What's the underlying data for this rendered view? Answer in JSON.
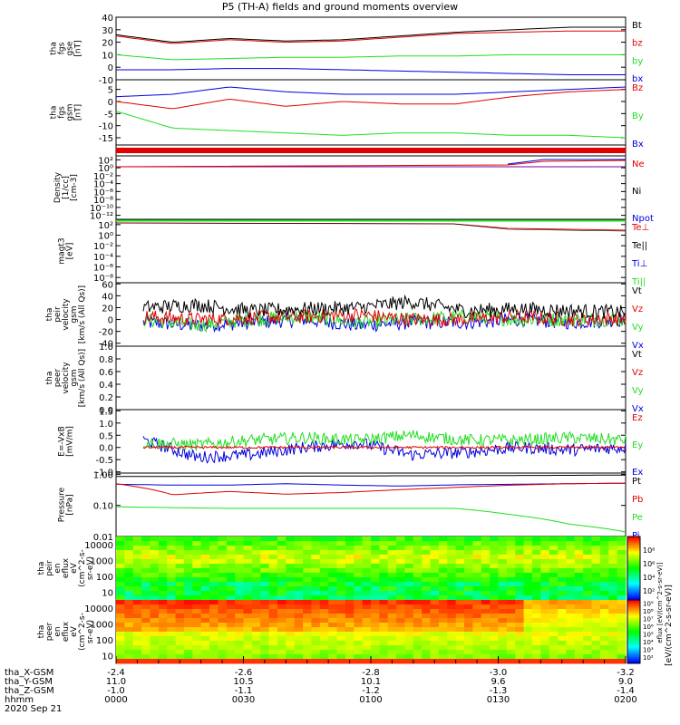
{
  "title": "P5 (TH-A) fields and ground moments overview",
  "colors": {
    "black": "#000000",
    "red": "#e00000",
    "green": "#22dd22",
    "blue": "#0000dd",
    "purple": "#7a00a0",
    "grey": "#999999"
  },
  "chart_data": [
    {
      "type": "line",
      "name": "fgs_gse",
      "ylabel_lines": [
        "tha",
        "fgs",
        "gse",
        "[nT]"
      ],
      "yticks": [
        "-10",
        "0",
        "10",
        "20",
        "30",
        "40"
      ],
      "ylim": [
        -10,
        40
      ],
      "series": [
        {
          "name": "Bt",
          "color": "#000000",
          "values": [
            26,
            20,
            23,
            21,
            22,
            25,
            28,
            30,
            32,
            32
          ]
        },
        {
          "name": "bz",
          "color": "#e00000",
          "values": [
            25,
            19,
            22,
            20,
            21,
            24,
            27,
            28,
            29,
            29
          ]
        },
        {
          "name": "by",
          "color": "#22dd22",
          "values": [
            10,
            6,
            7,
            8,
            8,
            9,
            9,
            10,
            10,
            10
          ]
        },
        {
          "name": "bx",
          "color": "#0000dd",
          "values": [
            -2,
            -2,
            -1,
            -1,
            -2,
            -3,
            -4,
            -5,
            -6,
            -6
          ]
        }
      ]
    },
    {
      "type": "line",
      "name": "fgs_gsm",
      "ylabel_lines": [
        "tha",
        "fgs",
        "gsm",
        "[nT]"
      ],
      "yticks": [
        "-15",
        "-10",
        "-5",
        "0",
        "5"
      ],
      "ylim": [
        -18,
        9
      ],
      "series": [
        {
          "name": "Bz",
          "color": "#e00000",
          "values": [
            0,
            -3,
            1,
            -2,
            0,
            -1,
            -1,
            2,
            4,
            5
          ]
        },
        {
          "name": "By",
          "color": "#22dd22",
          "values": [
            -4,
            -11,
            -12,
            -13,
            -14,
            -13,
            -13,
            -14,
            -14,
            -15
          ]
        },
        {
          "name": "Bx",
          "color": "#0000dd",
          "values": [
            2,
            3,
            6,
            4,
            3,
            3,
            3,
            4,
            5,
            6
          ]
        }
      ]
    },
    {
      "type": "line",
      "name": "density",
      "scale": "log",
      "ylabel_lines": [
        "Density",
        "[1/cc]",
        "[cm-3]"
      ],
      "yticks": [
        "10⁻¹²",
        "10⁻¹⁰",
        "10⁻⁸",
        "10⁻⁶",
        "10⁻⁴",
        "10⁻²",
        "10⁰",
        "10²"
      ],
      "series": [
        {
          "name": "Ne",
          "color": "#e00000"
        },
        {
          "name": "Ni",
          "color": "#000000"
        },
        {
          "name": "Npot",
          "color": "#0000dd"
        }
      ]
    },
    {
      "type": "line",
      "name": "temperature",
      "scale": "log",
      "ylabel_lines": [
        "magt3",
        "[eV]"
      ],
      "yticks": [
        "10⁻⁸",
        "10⁻⁶",
        "10⁻⁴",
        "10⁻²",
        "10⁰",
        "10²"
      ],
      "series": [
        {
          "name": "Te⊥",
          "color": "#e00000"
        },
        {
          "name": "Te||",
          "color": "#000000"
        },
        {
          "name": "Ti⊥",
          "color": "#0000dd"
        },
        {
          "name": "Ti||",
          "color": "#22dd22"
        }
      ]
    },
    {
      "type": "line",
      "name": "peir_velocity",
      "ylabel_lines": [
        "tha",
        "peir",
        "velocity",
        "gsm",
        "[km/s (All Qs)]"
      ],
      "yticks": [
        "-40",
        "-20",
        "0",
        "20",
        "40",
        "60"
      ],
      "ylim": [
        -45,
        62
      ],
      "series": [
        {
          "name": "Vt",
          "color": "#000000",
          "values": [
            20,
            25,
            15,
            18,
            20,
            30,
            15,
            18,
            15,
            12
          ]
        },
        {
          "name": "Vz",
          "color": "#e00000",
          "values": [
            5,
            0,
            3,
            5,
            8,
            0,
            0,
            5,
            0,
            2
          ]
        },
        {
          "name": "Vy",
          "color": "#22dd22",
          "values": [
            0,
            -10,
            0,
            5,
            -5,
            0,
            5,
            0,
            0,
            0
          ]
        },
        {
          "name": "Vx",
          "color": "#0000dd",
          "values": [
            -5,
            -10,
            -5,
            0,
            -10,
            -5,
            -5,
            0,
            -5,
            0
          ]
        }
      ]
    },
    {
      "type": "line",
      "name": "peer_velocity",
      "ylabel_lines": [
        "tha",
        "peer",
        "velocity",
        "gsm",
        "[km/s (All Qs)]"
      ],
      "yticks": [
        "0.0",
        "0.2",
        "0.4",
        "0.6",
        "0.8",
        "1.0"
      ],
      "ylim": [
        0,
        1
      ],
      "series": [
        {
          "name": "Vt",
          "color": "#000000"
        },
        {
          "name": "Vz",
          "color": "#e00000"
        },
        {
          "name": "Vy",
          "color": "#22dd22"
        },
        {
          "name": "Vx",
          "color": "#0000dd"
        }
      ]
    },
    {
      "type": "line",
      "name": "efield",
      "ylabel_lines": [
        "E=-VxB",
        "[mV/m]"
      ],
      "yticks": [
        "-1.0",
        "-0.5",
        "0.0",
        "0.5",
        "1.0",
        "1.5"
      ],
      "ylim": [
        -1.05,
        1.55
      ],
      "series": [
        {
          "name": "Ez",
          "color": "#e00000",
          "values": [
            0,
            0,
            0,
            0,
            0,
            0,
            0,
            0,
            0,
            0
          ]
        },
        {
          "name": "Ey",
          "color": "#22dd22",
          "values": [
            0.2,
            0.1,
            0.3,
            0.4,
            0.3,
            0.5,
            0.3,
            0.3,
            0.4,
            0.3
          ]
        },
        {
          "name": "Ex",
          "color": "#0000dd",
          "values": [
            0.3,
            -0.4,
            -0.3,
            0.0,
            0.2,
            -0.3,
            -0.2,
            0.0,
            -0.1,
            0.0
          ]
        }
      ]
    },
    {
      "type": "line",
      "name": "pressure",
      "scale": "log",
      "ylabel_lines": [
        "Pressure",
        "[nPa]"
      ],
      "yticks": [
        "0.01",
        "0.10",
        "1.00"
      ],
      "ylim": [
        0.01,
        1.1
      ],
      "series": [
        {
          "name": "Pt",
          "color": "#000000",
          "values": [
            0.85,
            0.86,
            0.87,
            0.87,
            0.88,
            0.9,
            0.9,
            0.92,
            0.93,
            0.95
          ]
        },
        {
          "name": "Pb",
          "color": "#e00000",
          "values": [
            0.5,
            0.22,
            0.28,
            0.23,
            0.26,
            0.32,
            0.38,
            0.45,
            0.5,
            0.52
          ]
        },
        {
          "name": "Pe",
          "color": "#22dd22",
          "values": [
            0.09,
            0.085,
            0.08,
            0.08,
            0.08,
            0.08,
            0.08,
            0.05,
            0.025,
            0.014
          ]
        },
        {
          "name": "Pi",
          "color": "#0000dd",
          "values": [
            0.48,
            0.45,
            0.45,
            0.5,
            0.45,
            0.42,
            0.46,
            0.48,
            0.5,
            0.52
          ]
        }
      ]
    },
    {
      "type": "heatmap",
      "name": "peir_en_eflux",
      "ylabel_lines": [
        "tha",
        "peir",
        "en",
        "eflux",
        "eV",
        "(cm^2-s-",
        "sr-eV)"
      ],
      "yticks": [
        "10",
        "100",
        "1000",
        "10000"
      ]
    },
    {
      "type": "heatmap",
      "name": "peer_en_eflux",
      "ylabel_lines": [
        "tha",
        "peer",
        "en",
        "eflux",
        "eV",
        "(cm^2-s-",
        "sr-eV)"
      ],
      "yticks": [
        "10",
        "100",
        "1000",
        "10000"
      ]
    }
  ],
  "colorbar": {
    "label": "[eV/(cm^2-s-sr-eV)]",
    "label2": "eflux [eV/(cm^2-s-sr-eV)]",
    "ticks_top": [
      "10²",
      "10⁴",
      "10⁶",
      "10⁸"
    ],
    "ticks_bottom": [
      "10²",
      "10³",
      "10⁴",
      "10⁵",
      "10⁶",
      "10⁷",
      "10⁸",
      "10⁹"
    ]
  },
  "x_axis": {
    "tick_times": [
      "0000",
      "0030",
      "0100",
      "0130",
      "0200"
    ],
    "row_labels": [
      "tha_X-GSM",
      "tha_Y-GSM",
      "tha_Z-GSM",
      "hhmm",
      "2020 Sep 21"
    ],
    "rows": [
      [
        "-2.4",
        "-2.6",
        "-2.8",
        "-3.0",
        "-3.2"
      ],
      [
        "11.0",
        "10.5",
        "10.1",
        "9.6",
        "9.0"
      ],
      [
        "-1.0",
        "-1.1",
        "-1.2",
        "-1.3",
        "-1.4"
      ],
      [
        "0000",
        "0030",
        "0100",
        "0130",
        "0200"
      ]
    ]
  }
}
